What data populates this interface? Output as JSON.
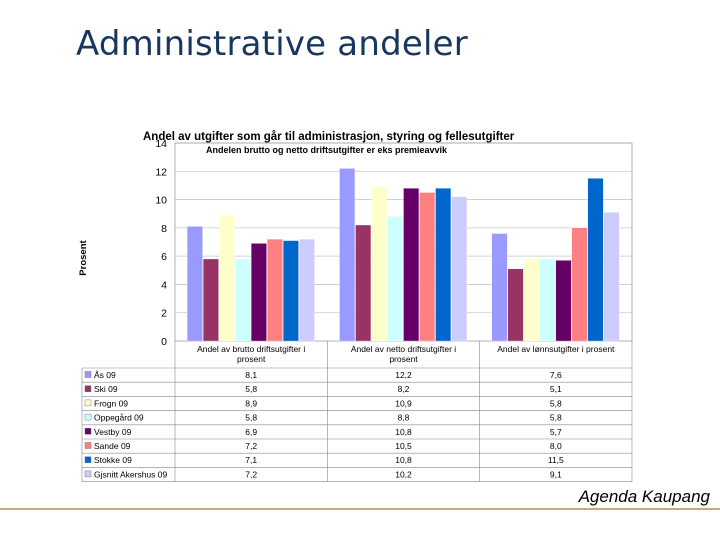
{
  "slide": {
    "title": "Administrative andeler",
    "footer": "Agenda Kaupang"
  },
  "chart_data": {
    "type": "bar",
    "title": "Andel av utgifter som går til administrasjon, styring og fellesutgifter",
    "subtitle": "Andelen brutto og netto driftsutgifter er eks premieavvik",
    "ylabel": "Prosent",
    "xlabel": "",
    "ylim": [
      0,
      14
    ],
    "yticks": [
      0,
      2,
      4,
      6,
      8,
      10,
      12,
      14
    ],
    "grid": true,
    "legend": "table-below",
    "categories": [
      "Andel av brutto driftsutgifter i prosent",
      "Andel av netto driftsutgifter i prosent",
      "Andel av lønnsutgifter i prosent"
    ],
    "series": [
      {
        "name": "Ås 09",
        "color": "#9999ff",
        "values": [
          8.1,
          12.2,
          7.6
        ],
        "labels": [
          "8,1",
          "12,2",
          "7,6"
        ]
      },
      {
        "name": "Ski 09",
        "color": "#993366",
        "values": [
          5.8,
          8.2,
          5.1
        ],
        "labels": [
          "5,8",
          "8,2",
          "5,1"
        ]
      },
      {
        "name": "Frogn 09",
        "color": "#ffffcc",
        "values": [
          8.9,
          10.9,
          5.8
        ],
        "labels": [
          "8,9",
          "10,9",
          "5,8"
        ]
      },
      {
        "name": "Oppegård 09",
        "color": "#ccffff",
        "values": [
          5.8,
          8.8,
          5.8
        ],
        "labels": [
          "5,8",
          "8,8",
          "5,8"
        ]
      },
      {
        "name": "Vestby 09",
        "color": "#660066",
        "values": [
          6.9,
          10.8,
          5.7
        ],
        "labels": [
          "6,9",
          "10,8",
          "5,7"
        ]
      },
      {
        "name": "Sande 09",
        "color": "#ff8080",
        "values": [
          7.2,
          10.5,
          8.0
        ],
        "labels": [
          "7,2",
          "10,5",
          "8,0"
        ]
      },
      {
        "name": "Stokke 09",
        "color": "#0066cc",
        "values": [
          7.1,
          10.8,
          11.5
        ],
        "labels": [
          "7,1",
          "10,8",
          "11,5"
        ]
      },
      {
        "name": "Gjsnitt Akershus 09",
        "color": "#ccccff",
        "values": [
          7.2,
          10.2,
          9.1
        ],
        "labels": [
          "7,2",
          "10,2",
          "9,1"
        ]
      }
    ]
  }
}
